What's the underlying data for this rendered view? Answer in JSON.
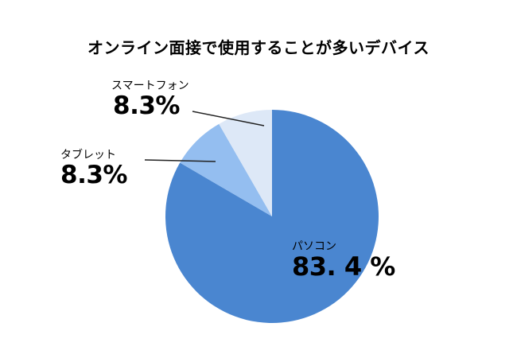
{
  "title": "オンライン面接で使用することが多いデバイス",
  "chart_data": {
    "type": "pie",
    "title": "オンライン面接で使用することが多いデバイス",
    "categories": [
      "パソコン",
      "タブレット",
      "スマートフォン"
    ],
    "values": [
      83.4,
      8.3,
      8.3
    ],
    "labels": [
      "83. 4 %",
      "8.3%",
      "8.3%"
    ],
    "colors": [
      "#4a86d0",
      "#94bef0",
      "#dde8f7"
    ],
    "start_angle": "12 o'clock, clockwise",
    "legend": "none (data labels)"
  },
  "labels": {
    "pc": {
      "name": "パソコン",
      "value": "83. 4 %"
    },
    "tablet": {
      "name": "タブレット",
      "value": "8.3%"
    },
    "smartphone": {
      "name": "スマートフォン",
      "value": "8.3%"
    }
  }
}
